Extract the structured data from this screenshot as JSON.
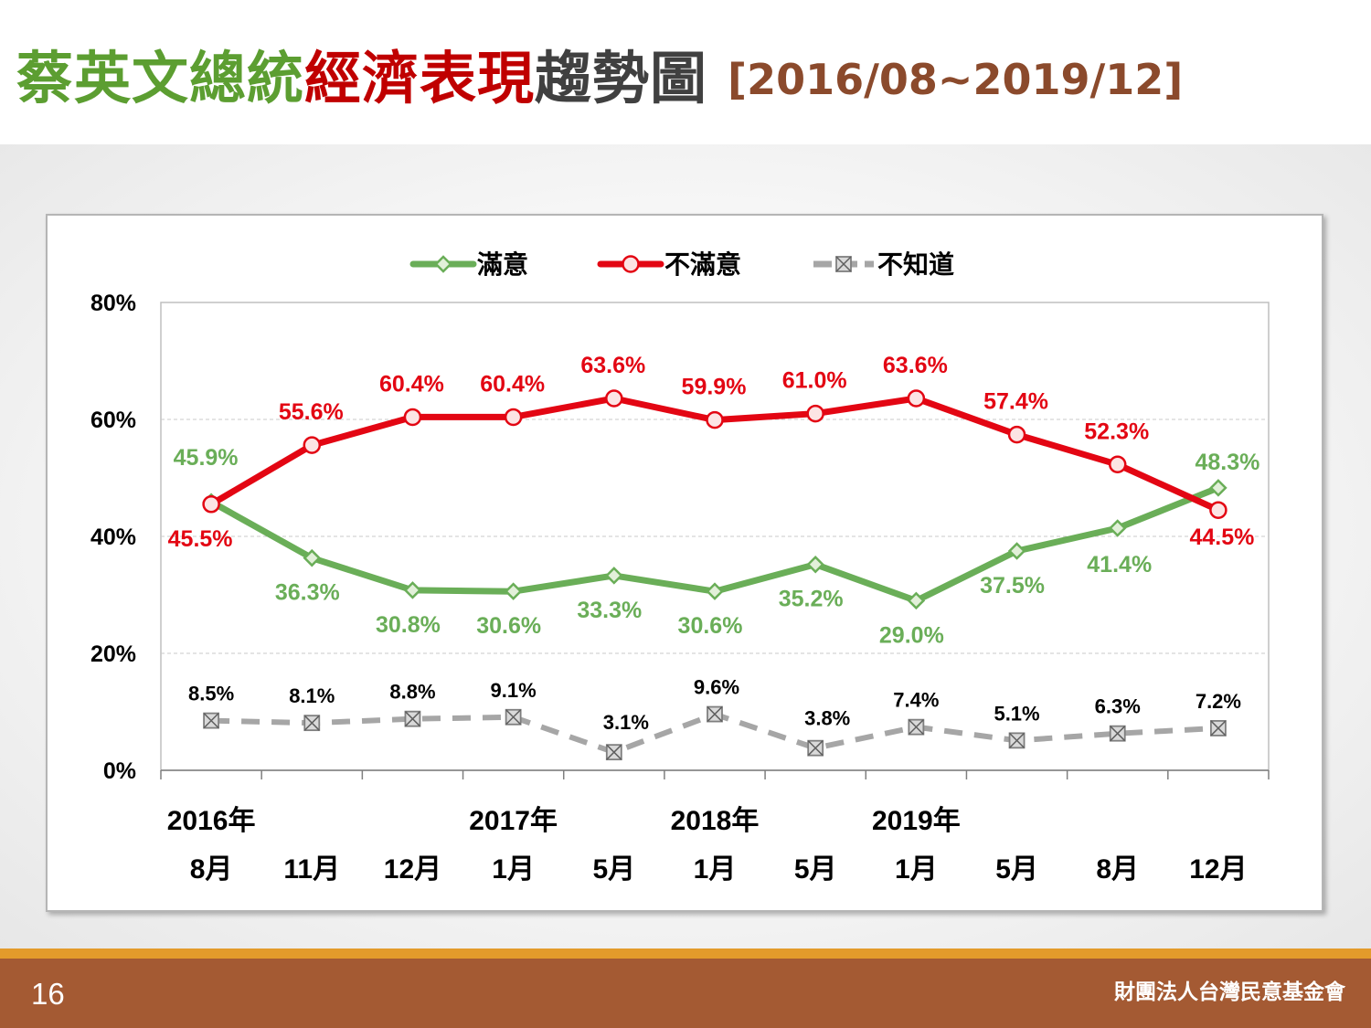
{
  "title": {
    "part1": "蔡英文總統",
    "part2": "經濟表現",
    "part3": "趨勢圖",
    "range": "[2016/08~2019/12]"
  },
  "colors": {
    "title_green": "#5c9e31",
    "title_red": "#c00000",
    "title_dark": "#404040",
    "title_brown": "#8b4a2c",
    "satisfied": "#6aae58",
    "dissatisfied": "#e30613",
    "unknown": "#a6a6a6",
    "footer_bg": "#a45a33",
    "footer_line": "#e39b2b"
  },
  "footer": {
    "page_number": "16",
    "organization": "財團法人台灣民意基金會"
  },
  "chart_data": {
    "type": "line",
    "title": "",
    "xlabel": "",
    "ylabel": "",
    "ylim": [
      0,
      80
    ],
    "yticks": [
      0,
      20,
      40,
      60,
      80
    ],
    "ytick_labels": [
      "0%",
      "20%",
      "40%",
      "60%",
      "80%"
    ],
    "grid": "horizontal dashed",
    "legend_position": "top-center",
    "year_labels": [
      "2016年",
      "",
      "",
      "2017年",
      "",
      "2018年",
      "",
      "2019年",
      "",
      "",
      ""
    ],
    "categories": [
      "8月",
      "11月",
      "12月",
      "1月",
      "5月",
      "1月",
      "5月",
      "1月",
      "5月",
      "8月",
      "12月"
    ],
    "series": [
      {
        "name": "滿意",
        "color": "#6aae58",
        "marker": "diamond",
        "values": [
          45.9,
          36.3,
          30.8,
          30.6,
          33.3,
          30.6,
          35.2,
          29.0,
          37.5,
          41.4,
          48.3
        ],
        "labels": [
          "45.9%",
          "36.3%",
          "30.8%",
          "30.6%",
          "33.3%",
          "30.6%",
          "35.2%",
          "29.0%",
          "37.5%",
          "41.4%",
          "48.3%"
        ]
      },
      {
        "name": "不滿意",
        "color": "#e30613",
        "marker": "circle",
        "values": [
          45.5,
          55.6,
          60.4,
          60.4,
          63.6,
          59.9,
          61.0,
          63.6,
          57.4,
          52.3,
          44.5
        ],
        "labels": [
          "45.5%",
          "55.6%",
          "60.4%",
          "60.4%",
          "63.6%",
          "59.9%",
          "61.0%",
          "63.6%",
          "57.4%",
          "52.3%",
          "44.5%"
        ]
      },
      {
        "name": "不知道",
        "color": "#a6a6a6",
        "marker": "square-x",
        "dashed": true,
        "values": [
          8.5,
          8.1,
          8.8,
          9.1,
          3.1,
          9.6,
          3.8,
          7.4,
          5.1,
          6.3,
          7.2
        ],
        "labels": [
          "8.5%",
          "8.1%",
          "8.8%",
          "9.1%",
          "3.1%",
          "9.6%",
          "3.8%",
          "7.4%",
          "5.1%",
          "6.3%",
          "7.2%"
        ]
      }
    ]
  }
}
